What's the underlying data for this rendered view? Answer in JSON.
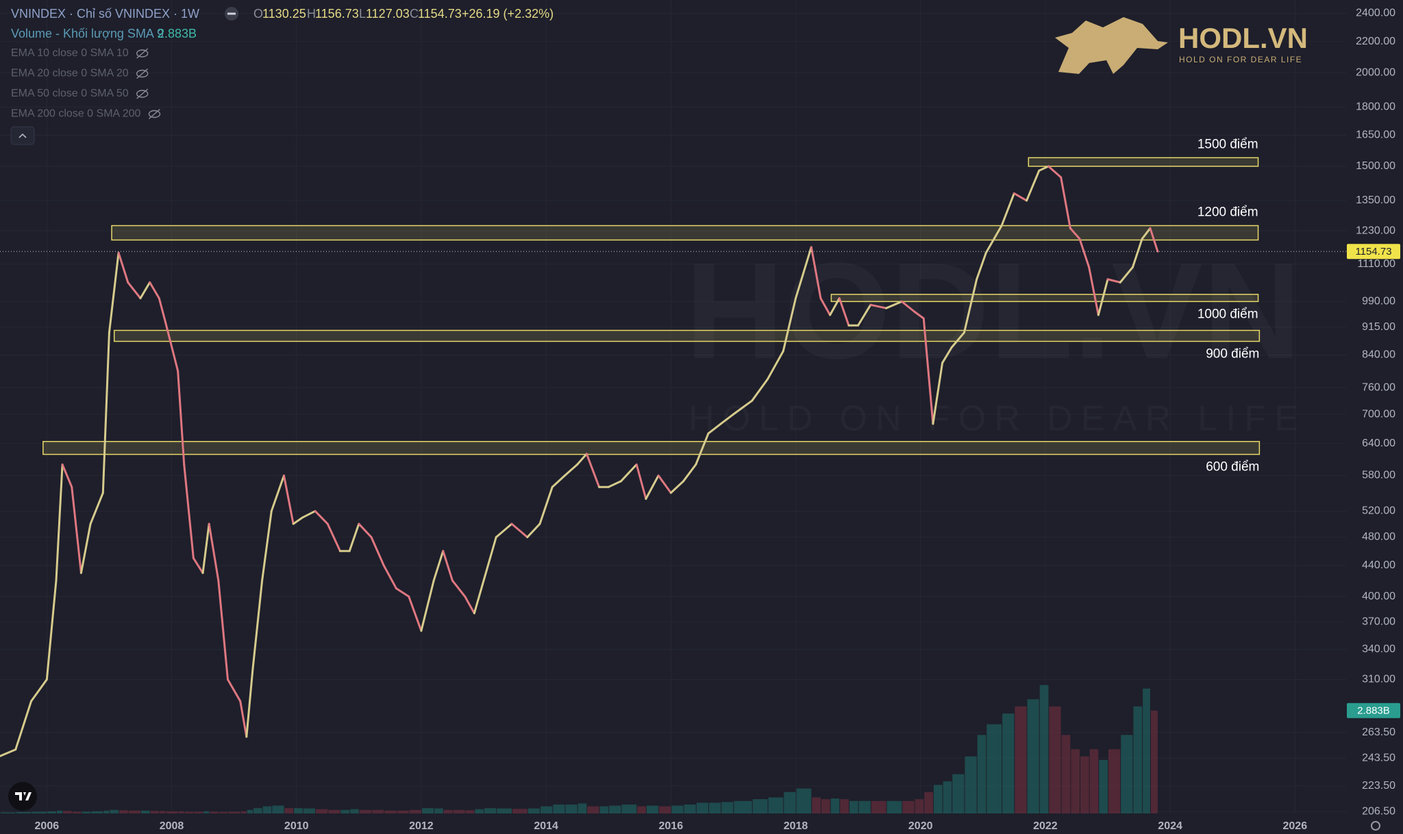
{
  "header": {
    "symbol": "VNINDEX · Chỉ số VNINDEX · 1W",
    "ohlc": [
      {
        "key": "O",
        "value": 1130.25
      },
      {
        "key": "H",
        "value": 1156.73
      },
      {
        "key": "L",
        "value": 1127.03
      },
      {
        "key": "C",
        "value": 1154.73
      }
    ],
    "change": "+26.19 (+2.32%)"
  },
  "indicators": [
    "EMA 10 close 0 SMA 10",
    "EMA 20 close 0 SMA 20",
    "EMA 50 close 0 SMA 50",
    "EMA 200 close 0 SMA 200"
  ],
  "logo": {
    "name": "HODL.VN",
    "tagline": "HOLD ON FOR DEAR LIFE"
  },
  "chart_data": {
    "type": "price",
    "log_scale": true,
    "grid": true,
    "colors": {
      "up": "#d6cb8c",
      "down": "#df7780",
      "volume_up": "#1f6f69",
      "volume_down": "#7c3040",
      "zone": "#e8d96a",
      "last": "#f0e34a",
      "volume_tag": "#2a9d8f"
    },
    "x": [
      2005.25,
      2005.5,
      2005.75,
      2006.0,
      2006.15,
      2006.25,
      2006.4,
      2006.55,
      2006.7,
      2006.9,
      2007.0,
      2007.15,
      2007.3,
      2007.5,
      2007.65,
      2007.8,
      2007.9,
      2008.1,
      2008.2,
      2008.35,
      2008.5,
      2008.6,
      2008.75,
      2008.9,
      2009.1,
      2009.2,
      2009.3,
      2009.45,
      2009.6,
      2009.8,
      2009.95,
      2010.1,
      2010.3,
      2010.5,
      2010.7,
      2010.85,
      2011.0,
      2011.2,
      2011.4,
      2011.6,
      2011.8,
      2012.0,
      2012.2,
      2012.35,
      2012.5,
      2012.7,
      2012.85,
      2013.0,
      2013.2,
      2013.45,
      2013.7,
      2013.9,
      2014.1,
      2014.3,
      2014.5,
      2014.65,
      2014.85,
      2015.0,
      2015.2,
      2015.45,
      2015.6,
      2015.8,
      2016.0,
      2016.2,
      2016.4,
      2016.6,
      2016.8,
      2017.0,
      2017.3,
      2017.55,
      2017.8,
      2018.0,
      2018.25,
      2018.4,
      2018.55,
      2018.7,
      2018.85,
      2019.0,
      2019.2,
      2019.45,
      2019.7,
      2019.9,
      2020.05,
      2020.2,
      2020.35,
      2020.5,
      2020.7,
      2020.9,
      2021.05,
      2021.3,
      2021.5,
      2021.7,
      2021.9,
      2022.05,
      2022.25,
      2022.4,
      2022.55,
      2022.7,
      2022.85,
      2023.0,
      2023.2,
      2023.4,
      2023.55,
      2023.68,
      2023.8
    ],
    "close": [
      245,
      250,
      290,
      310,
      420,
      600,
      560,
      430,
      500,
      550,
      900,
      1150,
      1050,
      1000,
      1050,
      1000,
      930,
      800,
      600,
      450,
      430,
      500,
      420,
      310,
      290,
      260,
      320,
      420,
      520,
      580,
      500,
      510,
      520,
      500,
      460,
      460,
      500,
      480,
      440,
      410,
      400,
      360,
      420,
      460,
      420,
      400,
      380,
      420,
      480,
      500,
      480,
      500,
      560,
      580,
      600,
      620,
      560,
      560,
      570,
      600,
      540,
      580,
      550,
      570,
      600,
      660,
      680,
      700,
      730,
      780,
      850,
      1000,
      1170,
      1000,
      950,
      1000,
      920,
      920,
      980,
      970,
      990,
      960,
      940,
      680,
      820,
      860,
      900,
      1060,
      1150,
      1250,
      1380,
      1350,
      1480,
      1500,
      1450,
      1240,
      1200,
      1100,
      950,
      1060,
      1050,
      1100,
      1200,
      1240,
      1154.73
    ],
    "volume": {
      "name": "Volume - Khối lượng SMA 9",
      "values": [
        0.03,
        0.03,
        0.04,
        0.05,
        0.06,
        0.08,
        0.07,
        0.05,
        0.05,
        0.06,
        0.08,
        0.1,
        0.09,
        0.08,
        0.08,
        0.07,
        0.07,
        0.06,
        0.06,
        0.05,
        0.05,
        0.06,
        0.05,
        0.04,
        0.05,
        0.06,
        0.1,
        0.15,
        0.2,
        0.22,
        0.15,
        0.15,
        0.14,
        0.12,
        0.1,
        0.1,
        0.12,
        0.1,
        0.1,
        0.08,
        0.08,
        0.1,
        0.15,
        0.14,
        0.1,
        0.1,
        0.09,
        0.12,
        0.15,
        0.14,
        0.13,
        0.14,
        0.2,
        0.25,
        0.25,
        0.28,
        0.2,
        0.2,
        0.22,
        0.25,
        0.2,
        0.22,
        0.2,
        0.22,
        0.25,
        0.3,
        0.3,
        0.32,
        0.35,
        0.4,
        0.45,
        0.6,
        0.7,
        0.45,
        0.4,
        0.42,
        0.4,
        0.35,
        0.35,
        0.35,
        0.35,
        0.35,
        0.4,
        0.6,
        0.8,
        0.9,
        1.1,
        1.6,
        2.2,
        2.5,
        2.8,
        3.0,
        3.2,
        3.6,
        3.0,
        2.2,
        1.8,
        1.6,
        1.8,
        1.5,
        1.8,
        2.2,
        3.0,
        3.5,
        2.883
      ],
      "last_label": "2.883B",
      "lim": [
        0,
        8.77
      ]
    },
    "xlim": [
      2005.25,
      2026.82
    ],
    "xticks": [
      2006,
      2008,
      2010,
      2012,
      2014,
      2016,
      2018,
      2020,
      2022,
      2024,
      2026
    ],
    "ylim": [
      205.4,
      2500
    ],
    "yticks": [
      {
        "value": 2400,
        "label": "2400.00"
      },
      {
        "value": 2200,
        "label": "2200.00"
      },
      {
        "value": 2000,
        "label": "2000.00"
      },
      {
        "value": 1800,
        "label": "1800.00"
      },
      {
        "value": 1650,
        "label": "1650.00"
      },
      {
        "value": 1500,
        "label": "1500.00"
      },
      {
        "value": 1350,
        "label": "1350.00"
      },
      {
        "value": 1230,
        "label": "1230.00"
      },
      {
        "value": 1110,
        "label": "1110.00"
      },
      {
        "value": 990,
        "label": "990.00"
      },
      {
        "value": 915,
        "label": "915.00"
      },
      {
        "value": 840,
        "label": "840.00"
      },
      {
        "value": 760,
        "label": "760.00"
      },
      {
        "value": 700,
        "label": "700.00"
      },
      {
        "value": 640,
        "label": "640.00"
      },
      {
        "value": 580,
        "label": "580.00"
      },
      {
        "value": 520,
        "label": "520.00"
      },
      {
        "value": 480,
        "label": "480.00"
      },
      {
        "value": 440,
        "label": "440.00"
      },
      {
        "value": 400,
        "label": "400.00"
      },
      {
        "value": 370,
        "label": "370.00"
      },
      {
        "value": 340,
        "label": "340.00"
      },
      {
        "value": 310,
        "label": "310.00"
      },
      {
        "value": 263.5,
        "label": "263.50"
      },
      {
        "value": 243.5,
        "label": "243.50"
      },
      {
        "value": 223.5,
        "label": "223.50"
      },
      {
        "value": 206.5,
        "label": "206.50"
      }
    ],
    "zones": [
      {
        "label": "1500 điểm",
        "low": 1500,
        "high": 1540,
        "x": [
          2021.73,
          2025.41
        ],
        "label_side": "above"
      },
      {
        "label": "1200 điểm",
        "low": 1196,
        "high": 1250,
        "x": [
          2007.04,
          2025.41
        ],
        "label_side": "above"
      },
      {
        "label": "1000 điểm",
        "low": 990,
        "high": 1012,
        "x": [
          2018.57,
          2025.41
        ],
        "label_side": "below"
      },
      {
        "label": "900 điểm",
        "low": 876,
        "high": 906,
        "x": [
          2007.08,
          2025.43
        ],
        "label_side": "below"
      },
      {
        "label": "600 điểm",
        "low": 619,
        "high": 644,
        "x": [
          2005.94,
          2025.43
        ],
        "label_side": "below"
      }
    ]
  }
}
